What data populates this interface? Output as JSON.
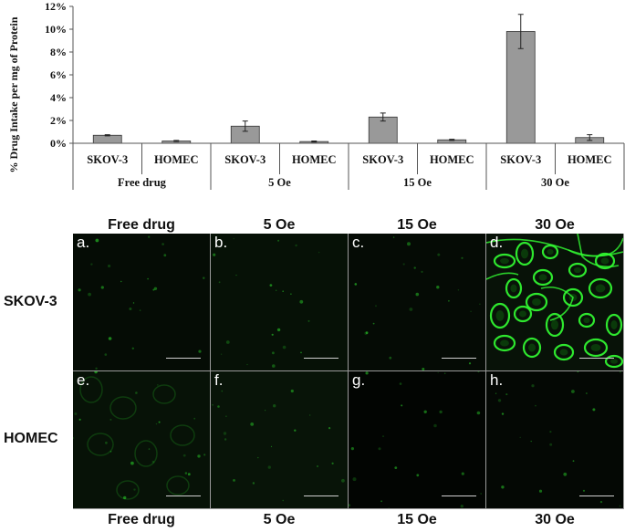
{
  "chart_data": {
    "type": "bar",
    "ylabel": "% Drug Intake per mg of Protein",
    "yticks": [
      "0%",
      "2%",
      "4%",
      "6%",
      "8%",
      "10%",
      "12%"
    ],
    "ylim": [
      0,
      12
    ],
    "categories": [
      {
        "group": "Free drug",
        "cell": "SKOV-3",
        "value": 0.7,
        "error": 0.05
      },
      {
        "group": "Free drug",
        "cell": "HOMEC",
        "value": 0.2,
        "error": 0.05
      },
      {
        "group": "5 Oe",
        "cell": "SKOV-3",
        "value": 1.5,
        "error": 0.45
      },
      {
        "group": "5 Oe",
        "cell": "HOMEC",
        "value": 0.15,
        "error": 0.05
      },
      {
        "group": "15 Oe",
        "cell": "SKOV-3",
        "value": 2.3,
        "error": 0.35
      },
      {
        "group": "15 Oe",
        "cell": "HOMEC",
        "value": 0.3,
        "error": 0.05
      },
      {
        "group": "30 Oe",
        "cell": "SKOV-3",
        "value": 9.8,
        "error": 1.5
      },
      {
        "group": "30 Oe",
        "cell": "HOMEC",
        "value": 0.5,
        "error": 0.25
      }
    ],
    "groups": [
      "Free drug",
      "5 Oe",
      "15 Oe",
      "30 Oe"
    ],
    "bar_color": "#999999"
  },
  "micrographs": {
    "column_headers_top": [
      "Free drug",
      "5 Oe",
      "15 Oe",
      "30 Oe"
    ],
    "column_headers_bottom": [
      "Free drug",
      "5 Oe",
      "15 Oe",
      "30 Oe"
    ],
    "rows": [
      "SKOV-3",
      "HOMEC"
    ],
    "panels": [
      {
        "label": "a.",
        "intensity": "low"
      },
      {
        "label": "b.",
        "intensity": "low"
      },
      {
        "label": "c.",
        "intensity": "low"
      },
      {
        "label": "d.",
        "intensity": "high"
      },
      {
        "label": "e.",
        "intensity": "low"
      },
      {
        "label": "f.",
        "intensity": "low"
      },
      {
        "label": "g.",
        "intensity": "low"
      },
      {
        "label": "h.",
        "intensity": "low"
      }
    ],
    "fluorescence_color": "#33ff33"
  }
}
